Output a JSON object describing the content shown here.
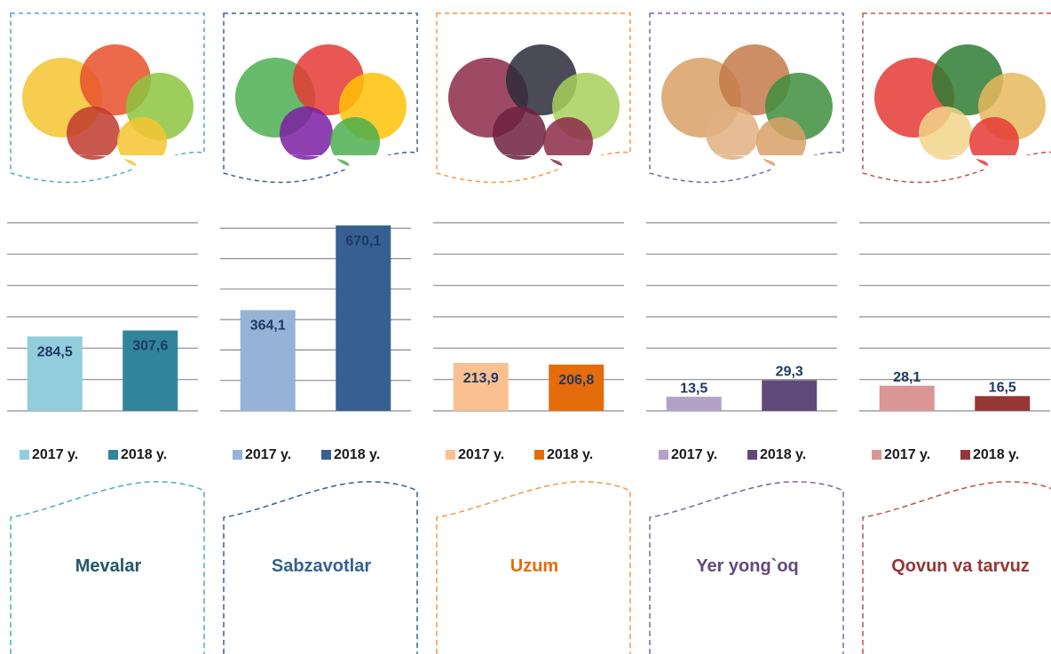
{
  "chart_data": [
    {
      "type": "bar",
      "title": "Mevalar",
      "accent": "#4bacc6",
      "title_color": "#215868",
      "series": [
        {
          "name": "2017 y.",
          "color": "#92cddc",
          "values": [
            284.5
          ],
          "value_labels": [
            "284,5"
          ]
        },
        {
          "name": "2018 y.",
          "color": "#31849b",
          "values": [
            307.6
          ],
          "value_labels": [
            "307,6"
          ]
        }
      ],
      "ylim": [
        0,
        720
      ],
      "yticks": [
        0,
        120,
        240,
        360,
        480,
        600,
        720
      ],
      "grid": true
    },
    {
      "type": "bar",
      "title": "Sabzavotlar",
      "accent": "#366092",
      "title_color": "#366092",
      "series": [
        {
          "name": "2017 y.",
          "color": "#95b3d7",
          "values": [
            364.1
          ],
          "value_labels": [
            "364,1"
          ]
        },
        {
          "name": "2018 y.",
          "color": "#366092",
          "values": [
            670.1
          ],
          "value_labels": [
            "670,1"
          ]
        }
      ],
      "ylim": [
        0,
        680
      ],
      "yticks": [
        0,
        110,
        220,
        330,
        440,
        550,
        660
      ],
      "grid": true
    },
    {
      "type": "bar",
      "title": "Uzum",
      "accent": "#f79646",
      "title_color": "#e46c0a",
      "series": [
        {
          "name": "2017 y.",
          "color": "#fac090",
          "values": [
            213.9
          ],
          "value_labels": [
            "213,9"
          ]
        },
        {
          "name": "2018 y.",
          "color": "#e46c0a",
          "values": [
            206.8
          ],
          "value_labels": [
            "206,8"
          ]
        }
      ],
      "ylim": [
        0,
        840
      ],
      "yticks": [
        0,
        140,
        280,
        420,
        560,
        700,
        840
      ],
      "grid": true
    },
    {
      "type": "bar",
      "title": "Yer yong`oq",
      "accent": "#8064a2",
      "title_color": "#604a7b",
      "series": [
        {
          "name": "2017 y.",
          "color": "#b3a2c7",
          "values": [
            13.5
          ],
          "value_labels": [
            "13,5"
          ]
        },
        {
          "name": "2018 y.",
          "color": "#604a7b",
          "values": [
            29.3
          ],
          "value_labels": [
            "29,3"
          ]
        }
      ],
      "ylim": [
        0,
        180
      ],
      "yticks": [
        0,
        30,
        60,
        90,
        120,
        150,
        180
      ],
      "grid": true
    },
    {
      "type": "bar",
      "title": "Qovun va tarvuz",
      "accent": "#c0504d",
      "title_color": "#953735",
      "series": [
        {
          "name": "2017 y.",
          "color": "#d99694",
          "values": [
            28.1
          ],
          "value_labels": [
            "28,1"
          ]
        },
        {
          "name": "2018 y.",
          "color": "#953735",
          "values": [
            16.5
          ],
          "value_labels": [
            "16,5"
          ]
        }
      ],
      "ylim": [
        0,
        210
      ],
      "yticks": [
        0,
        35,
        70,
        105,
        140,
        175,
        210
      ],
      "grid": true
    }
  ]
}
